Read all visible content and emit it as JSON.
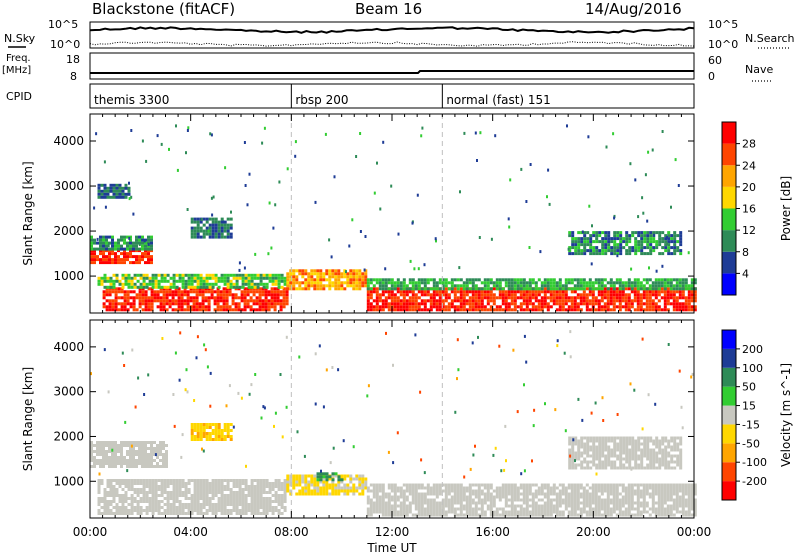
{
  "header": {
    "station": "Blackstone (fitACF)",
    "beam": "Beam 16",
    "date": "14/Aug/2016"
  },
  "left_labels": {
    "nsky": "N.Sky",
    "freq": "Freq.",
    "freq_unit": "[MHz]",
    "cpid": "CPID"
  },
  "right_labels": {
    "nsearch": "N.Search",
    "nave": "Nave"
  },
  "nsky_ticks": [
    "10^5",
    "10^0"
  ],
  "nsearch_ticks": [
    "10^5",
    "10^0"
  ],
  "freq_ticks": [
    "18",
    "8"
  ],
  "nave_ticks": [
    "60",
    "0"
  ],
  "cpid_segments": [
    {
      "label": "themis 3300",
      "start_hour": 0.0
    },
    {
      "label": "rbsp 200",
      "start_hour": 8.0
    },
    {
      "label": "normal (fast) 151",
      "start_hour": 14.0
    }
  ],
  "colors": {
    "power": [
      "#0000ff",
      "#1e3c96",
      "#2e8b57",
      "#32cd32",
      "#ffd700",
      "#ffa500",
      "#ff4500",
      "#ff0000"
    ],
    "velocity": [
      "#ff0000",
      "#ff4500",
      "#ffa500",
      "#ffd700",
      "#c8c8c0",
      "#32cd32",
      "#2e8b57",
      "#1e3c96",
      "#0000ff"
    ],
    "dashed_divider": "#c0c0c0"
  },
  "chart_data": [
    {
      "type": "heatmap",
      "title": "",
      "ylabel": "Slant Range [km]",
      "xlabel": "",
      "ylim": [
        180,
        4600
      ],
      "xlim": [
        0,
        24
      ],
      "yticks": [
        "4000",
        "3000",
        "2000",
        "1000"
      ],
      "colorbar": {
        "label": "Power [dB]",
        "ticks": [
          "28",
          "24",
          "20",
          "16",
          "12",
          "8",
          "4"
        ],
        "range": [
          0,
          32
        ]
      },
      "echo_regions": [
        {
          "x": [
            0.0,
            2.4
          ],
          "y": [
            1300,
            1600
          ],
          "level": 28
        },
        {
          "x": [
            0.0,
            2.4
          ],
          "y": [
            1600,
            1900
          ],
          "level": 10
        },
        {
          "x": [
            0.5,
            7.8
          ],
          "y": [
            250,
            750
          ],
          "level": 28
        },
        {
          "x": [
            0.3,
            7.8
          ],
          "y": [
            750,
            1050
          ],
          "level": 14
        },
        {
          "x": [
            7.8,
            11.0
          ],
          "y": [
            700,
            1150
          ],
          "level": 22
        },
        {
          "x": [
            11.0,
            24.0
          ],
          "y": [
            250,
            750
          ],
          "level": 28
        },
        {
          "x": [
            11.0,
            24.0
          ],
          "y": [
            750,
            950
          ],
          "level": 12
        },
        {
          "x": [
            4.0,
            5.6
          ],
          "y": [
            1900,
            2300
          ],
          "level": 8
        },
        {
          "x": [
            19.0,
            23.5
          ],
          "y": [
            1500,
            2000
          ],
          "level": 10
        },
        {
          "x": [
            0.3,
            1.6
          ],
          "y": [
            2750,
            3050
          ],
          "level": 8
        }
      ]
    },
    {
      "type": "heatmap",
      "title": "",
      "ylabel": "Slant Range [km]",
      "xlabel": "Time UT",
      "ylim": [
        180,
        4600
      ],
      "xlim": [
        0,
        24
      ],
      "yticks": [
        "4000",
        "3000",
        "2000",
        "1000"
      ],
      "xticks": [
        "00:00",
        "04:00",
        "08:00",
        "12:00",
        "16:00",
        "20:00",
        "00:00"
      ],
      "colorbar": {
        "label": "Velocity [m s^-1]",
        "ticks": [
          "200",
          "100",
          "50",
          "15",
          "-15",
          "-50",
          "-100",
          "-200"
        ],
        "range": [
          -250,
          250
        ]
      },
      "echo_regions": [
        {
          "x": [
            0.0,
            3.0
          ],
          "y": [
            1300,
            1900
          ],
          "level": 0
        },
        {
          "x": [
            0.3,
            7.8
          ],
          "y": [
            250,
            1050
          ],
          "level": 0
        },
        {
          "x": [
            7.8,
            11.0
          ],
          "y": [
            700,
            1150
          ],
          "level": -20
        },
        {
          "x": [
            9.0,
            10.0
          ],
          "y": [
            1000,
            1200
          ],
          "level": 60
        },
        {
          "x": [
            11.0,
            24.0
          ],
          "y": [
            250,
            950
          ],
          "level": 0
        },
        {
          "x": [
            4.0,
            5.6
          ],
          "y": [
            1900,
            2300
          ],
          "level": -40
        },
        {
          "x": [
            19.0,
            23.5
          ],
          "y": [
            1300,
            2000
          ],
          "level": 0
        }
      ]
    }
  ]
}
